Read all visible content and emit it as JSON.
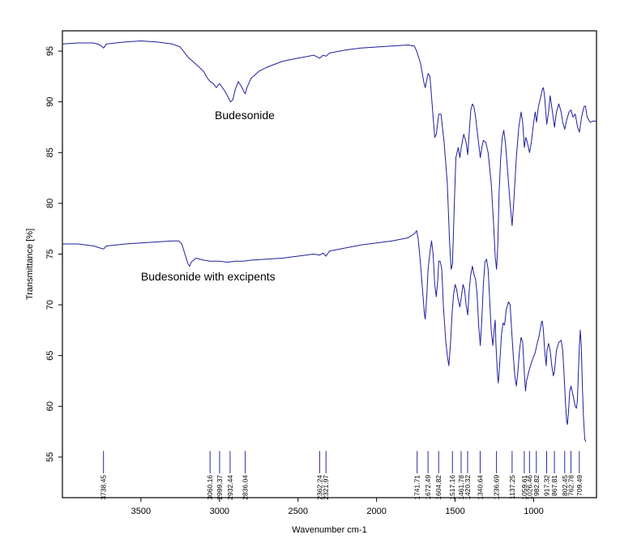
{
  "chart_data": {
    "type": "line",
    "xlabel": "Wavenumber cm-1",
    "ylabel": "Transmittance [%]",
    "xlim": [
      4000,
      600
    ],
    "ylim": [
      51,
      97
    ],
    "x_reversed": true,
    "x_ticks": [
      3500,
      3000,
      2500,
      2000,
      1500,
      1000
    ],
    "y_ticks": [
      55,
      60,
      65,
      70,
      75,
      80,
      85,
      90,
      95
    ],
    "line_color": "#1f1f9c",
    "annotations": [
      {
        "text": "Budesonide",
        "x": 3030,
        "y": 88.3
      },
      {
        "text": "Budesonide with excipents",
        "x": 3500,
        "y": 72.4
      }
    ],
    "peak_marker_y": [
      53.4,
      55.6
    ],
    "peaks": [
      "3738.45",
      "3060.16",
      "2999.37",
      "2932.44",
      "2836.04",
      "2362.24",
      "2321.97",
      "1741.71",
      "1672.49",
      "1604.82",
      "1517.16",
      "1461.78",
      "1420.32",
      "1340.64",
      "1236.69",
      "1137.25",
      "1059.61",
      "1026.46",
      "982.82",
      "917.32",
      "867.81",
      "802.45",
      "762.78",
      "709.49"
    ],
    "series": [
      {
        "name": "Budesonide",
        "points": [
          [
            4000,
            95.7
          ],
          [
            3900,
            95.8
          ],
          [
            3800,
            95.8
          ],
          [
            3760,
            95.6
          ],
          [
            3738,
            95.3
          ],
          [
            3720,
            95.7
          ],
          [
            3600,
            95.9
          ],
          [
            3500,
            96.0
          ],
          [
            3400,
            95.9
          ],
          [
            3300,
            95.7
          ],
          [
            3250,
            95.4
          ],
          [
            3200,
            94.4
          ],
          [
            3150,
            93.7
          ],
          [
            3100,
            93.0
          ],
          [
            3080,
            92.4
          ],
          [
            3060,
            92.0
          ],
          [
            3040,
            91.8
          ],
          [
            3020,
            91.4
          ],
          [
            3000,
            91.8
          ],
          [
            2985,
            91.5
          ],
          [
            2960,
            90.9
          ],
          [
            2940,
            90.3
          ],
          [
            2930,
            90.0
          ],
          [
            2915,
            90.2
          ],
          [
            2900,
            91.2
          ],
          [
            2880,
            92.0
          ],
          [
            2860,
            91.5
          ],
          [
            2845,
            91.0
          ],
          [
            2836,
            90.8
          ],
          [
            2825,
            91.4
          ],
          [
            2800,
            92.3
          ],
          [
            2750,
            93.0
          ],
          [
            2700,
            93.4
          ],
          [
            2600,
            94.0
          ],
          [
            2500,
            94.3
          ],
          [
            2400,
            94.6
          ],
          [
            2362,
            94.3
          ],
          [
            2340,
            94.6
          ],
          [
            2322,
            94.5
          ],
          [
            2300,
            94.8
          ],
          [
            2200,
            95.1
          ],
          [
            2100,
            95.3
          ],
          [
            2000,
            95.4
          ],
          [
            1900,
            95.5
          ],
          [
            1800,
            95.6
          ],
          [
            1760,
            95.5
          ],
          [
            1745,
            95.0
          ],
          [
            1720,
            93.8
          ],
          [
            1700,
            92.0
          ],
          [
            1690,
            91.4
          ],
          [
            1672,
            92.8
          ],
          [
            1660,
            92.5
          ],
          [
            1650,
            90.5
          ],
          [
            1640,
            88.5
          ],
          [
            1630,
            86.5
          ],
          [
            1620,
            86.8
          ],
          [
            1604,
            88.8
          ],
          [
            1590,
            88.8
          ],
          [
            1570,
            86.0
          ],
          [
            1550,
            82.0
          ],
          [
            1535,
            76.0
          ],
          [
            1525,
            73.5
          ],
          [
            1517,
            74.0
          ],
          [
            1505,
            80.0
          ],
          [
            1495,
            84.5
          ],
          [
            1480,
            85.5
          ],
          [
            1470,
            84.5
          ],
          [
            1461,
            85.5
          ],
          [
            1445,
            86.8
          ],
          [
            1430,
            86.0
          ],
          [
            1420,
            84.8
          ],
          [
            1410,
            87.0
          ],
          [
            1400,
            89.2
          ],
          [
            1390,
            89.8
          ],
          [
            1380,
            89.5
          ],
          [
            1370,
            88.5
          ],
          [
            1355,
            86.5
          ],
          [
            1340,
            84.5
          ],
          [
            1330,
            85.5
          ],
          [
            1320,
            86.2
          ],
          [
            1305,
            86.0
          ],
          [
            1290,
            85.0
          ],
          [
            1270,
            82.0
          ],
          [
            1255,
            78.0
          ],
          [
            1245,
            74.8
          ],
          [
            1236,
            73.5
          ],
          [
            1228,
            76.0
          ],
          [
            1220,
            81.0
          ],
          [
            1210,
            84.5
          ],
          [
            1200,
            86.5
          ],
          [
            1190,
            87.2
          ],
          [
            1180,
            86.0
          ],
          [
            1165,
            83.0
          ],
          [
            1150,
            80.0
          ],
          [
            1137,
            77.8
          ],
          [
            1125,
            80.5
          ],
          [
            1110,
            84.5
          ],
          [
            1095,
            87.5
          ],
          [
            1080,
            89.0
          ],
          [
            1070,
            88.0
          ],
          [
            1059,
            85.5
          ],
          [
            1050,
            86.5
          ],
          [
            1040,
            86.0
          ],
          [
            1026,
            85.0
          ],
          [
            1015,
            86.0
          ],
          [
            1000,
            88.0
          ],
          [
            990,
            89.0
          ],
          [
            982,
            88.0
          ],
          [
            970,
            89.5
          ],
          [
            955,
            90.5
          ],
          [
            945,
            91.2
          ],
          [
            938,
            91.4
          ],
          [
            930,
            90.5
          ],
          [
            917,
            87.8
          ],
          [
            905,
            89.0
          ],
          [
            895,
            90.6
          ],
          [
            885,
            89.5
          ],
          [
            867,
            87.5
          ],
          [
            855,
            89.0
          ],
          [
            840,
            89.8
          ],
          [
            825,
            89.0
          ],
          [
            815,
            88.0
          ],
          [
            802,
            87.3
          ],
          [
            790,
            88.2
          ],
          [
            775,
            89.0
          ],
          [
            762,
            89.2
          ],
          [
            750,
            88.5
          ],
          [
            735,
            88.8
          ],
          [
            720,
            87.5
          ],
          [
            709,
            87.0
          ],
          [
            695,
            88.5
          ],
          [
            680,
            89.5
          ],
          [
            670,
            89.6
          ],
          [
            660,
            88.5
          ],
          [
            640,
            88.0
          ],
          [
            620,
            88.1
          ],
          [
            600,
            88.1
          ]
        ]
      },
      {
        "name": "Budesonide with excipents",
        "points": [
          [
            4000,
            76.0
          ],
          [
            3900,
            76.0
          ],
          [
            3800,
            75.8
          ],
          [
            3760,
            75.6
          ],
          [
            3738,
            75.5
          ],
          [
            3720,
            75.8
          ],
          [
            3600,
            76.0
          ],
          [
            3500,
            76.1
          ],
          [
            3400,
            76.2
          ],
          [
            3300,
            76.3
          ],
          [
            3260,
            76.3
          ],
          [
            3240,
            76.0
          ],
          [
            3220,
            75.0
          ],
          [
            3200,
            74.0
          ],
          [
            3190,
            73.8
          ],
          [
            3180,
            74.2
          ],
          [
            3150,
            74.6
          ],
          [
            3100,
            74.4
          ],
          [
            3060,
            74.3
          ],
          [
            3000,
            74.3
          ],
          [
            2950,
            74.2
          ],
          [
            2900,
            74.3
          ],
          [
            2850,
            74.3
          ],
          [
            2800,
            74.4
          ],
          [
            2700,
            74.5
          ],
          [
            2600,
            74.6
          ],
          [
            2500,
            74.8
          ],
          [
            2400,
            75.0
          ],
          [
            2362,
            74.9
          ],
          [
            2340,
            75.1
          ],
          [
            2322,
            74.8
          ],
          [
            2300,
            75.3
          ],
          [
            2200,
            75.6
          ],
          [
            2100,
            75.9
          ],
          [
            2000,
            76.1
          ],
          [
            1900,
            76.3
          ],
          [
            1800,
            76.6
          ],
          [
            1760,
            77.0
          ],
          [
            1745,
            77.3
          ],
          [
            1735,
            76.5
          ],
          [
            1720,
            74.0
          ],
          [
            1705,
            71.0
          ],
          [
            1695,
            69.0
          ],
          [
            1690,
            68.6
          ],
          [
            1680,
            71.0
          ],
          [
            1672,
            73.5
          ],
          [
            1660,
            75.2
          ],
          [
            1650,
            76.3
          ],
          [
            1640,
            75.0
          ],
          [
            1630,
            72.0
          ],
          [
            1620,
            70.8
          ],
          [
            1610,
            72.5
          ],
          [
            1604,
            74.3
          ],
          [
            1595,
            74.3
          ],
          [
            1585,
            73.5
          ],
          [
            1575,
            70.0
          ],
          [
            1560,
            66.5
          ],
          [
            1550,
            65.0
          ],
          [
            1540,
            64.0
          ],
          [
            1530,
            66.0
          ],
          [
            1520,
            69.0
          ],
          [
            1510,
            71.0
          ],
          [
            1500,
            72.0
          ],
          [
            1490,
            71.5
          ],
          [
            1480,
            70.5
          ],
          [
            1470,
            69.8
          ],
          [
            1460,
            70.8
          ],
          [
            1450,
            72.0
          ],
          [
            1440,
            71.5
          ],
          [
            1430,
            70.0
          ],
          [
            1420,
            69.0
          ],
          [
            1410,
            71.5
          ],
          [
            1400,
            73.0
          ],
          [
            1390,
            73.8
          ],
          [
            1380,
            73.0
          ],
          [
            1370,
            72.5
          ],
          [
            1360,
            71.0
          ],
          [
            1350,
            68.0
          ],
          [
            1340,
            66.0
          ],
          [
            1330,
            68.5
          ],
          [
            1320,
            72.0
          ],
          [
            1310,
            74.2
          ],
          [
            1300,
            74.5
          ],
          [
            1290,
            73.5
          ],
          [
            1280,
            70.5
          ],
          [
            1270,
            67.5
          ],
          [
            1260,
            66.0
          ],
          [
            1250,
            67.8
          ],
          [
            1245,
            68.5
          ],
          [
            1240,
            66.0
          ],
          [
            1230,
            63.0
          ],
          [
            1225,
            62.3
          ],
          [
            1215,
            64.5
          ],
          [
            1205,
            67.0
          ],
          [
            1195,
            68.2
          ],
          [
            1185,
            68.0
          ],
          [
            1175,
            69.5
          ],
          [
            1160,
            70.3
          ],
          [
            1150,
            70.0
          ],
          [
            1140,
            67.5
          ],
          [
            1130,
            65.0
          ],
          [
            1120,
            63.0
          ],
          [
            1110,
            62.0
          ],
          [
            1100,
            63.5
          ],
          [
            1090,
            65.5
          ],
          [
            1080,
            66.8
          ],
          [
            1070,
            66.3
          ],
          [
            1060,
            63.5
          ],
          [
            1052,
            61.5
          ],
          [
            1045,
            62.5
          ],
          [
            1030,
            63.5
          ],
          [
            1010,
            64.5
          ],
          [
            990,
            65.3
          ],
          [
            980,
            66.0
          ],
          [
            965,
            67.0
          ],
          [
            950,
            68.3
          ],
          [
            945,
            68.4
          ],
          [
            938,
            67.5
          ],
          [
            930,
            65.5
          ],
          [
            920,
            64.0
          ],
          [
            915,
            65.5
          ],
          [
            905,
            66.2
          ],
          [
            895,
            65.5
          ],
          [
            885,
            64.0
          ],
          [
            875,
            63.0
          ],
          [
            867,
            63.5
          ],
          [
            855,
            65.5
          ],
          [
            840,
            66.3
          ],
          [
            825,
            66.5
          ],
          [
            815,
            65.5
          ],
          [
            806,
            63.0
          ],
          [
            798,
            60.5
          ],
          [
            790,
            58.5
          ],
          [
            785,
            58.2
          ],
          [
            778,
            59.5
          ],
          [
            770,
            61.5
          ],
          [
            762,
            62.0
          ],
          [
            752,
            61.3
          ],
          [
            742,
            60.5
          ],
          [
            735,
            60.0
          ],
          [
            728,
            59.8
          ],
          [
            722,
            60.5
          ],
          [
            716,
            63.0
          ],
          [
            709,
            66.0
          ],
          [
            703,
            67.5
          ],
          [
            697,
            66.0
          ],
          [
            690,
            62.0
          ],
          [
            683,
            59.0
          ],
          [
            675,
            56.8
          ],
          [
            668,
            56.5
          ]
        ]
      }
    ]
  }
}
